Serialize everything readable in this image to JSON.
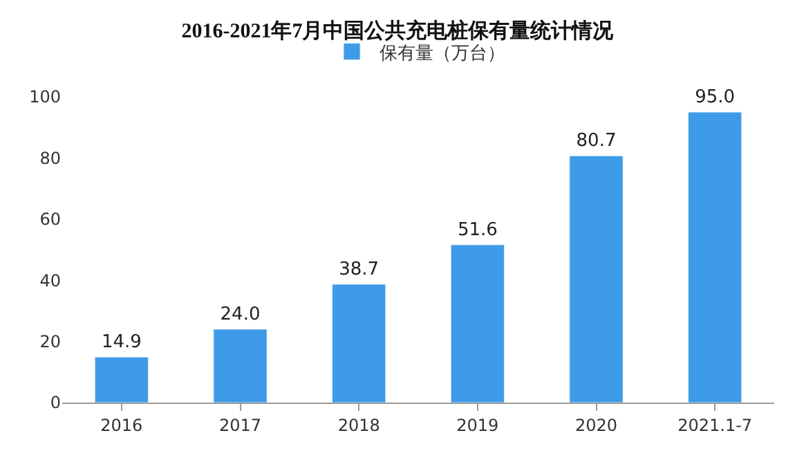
{
  "chart_data": {
    "type": "bar",
    "title": "2016-2021年7月中国公共充电桩保有量统计情况",
    "categories": [
      "2016",
      "2017",
      "2018",
      "2019",
      "2020",
      "2021.1-7"
    ],
    "series": [
      {
        "name": "保有量（万台）",
        "color": "#3d9be9",
        "values": [
          14.9,
          24.0,
          38.7,
          51.6,
          80.7,
          95.0
        ],
        "value_labels": [
          "14.9",
          "24.0",
          "38.7",
          "51.6",
          "80.7",
          "95.0"
        ]
      }
    ],
    "ylim": [
      0,
      100
    ],
    "yticks": [
      0,
      20,
      40,
      60,
      80,
      100
    ],
    "grid": false,
    "legend": "top"
  }
}
